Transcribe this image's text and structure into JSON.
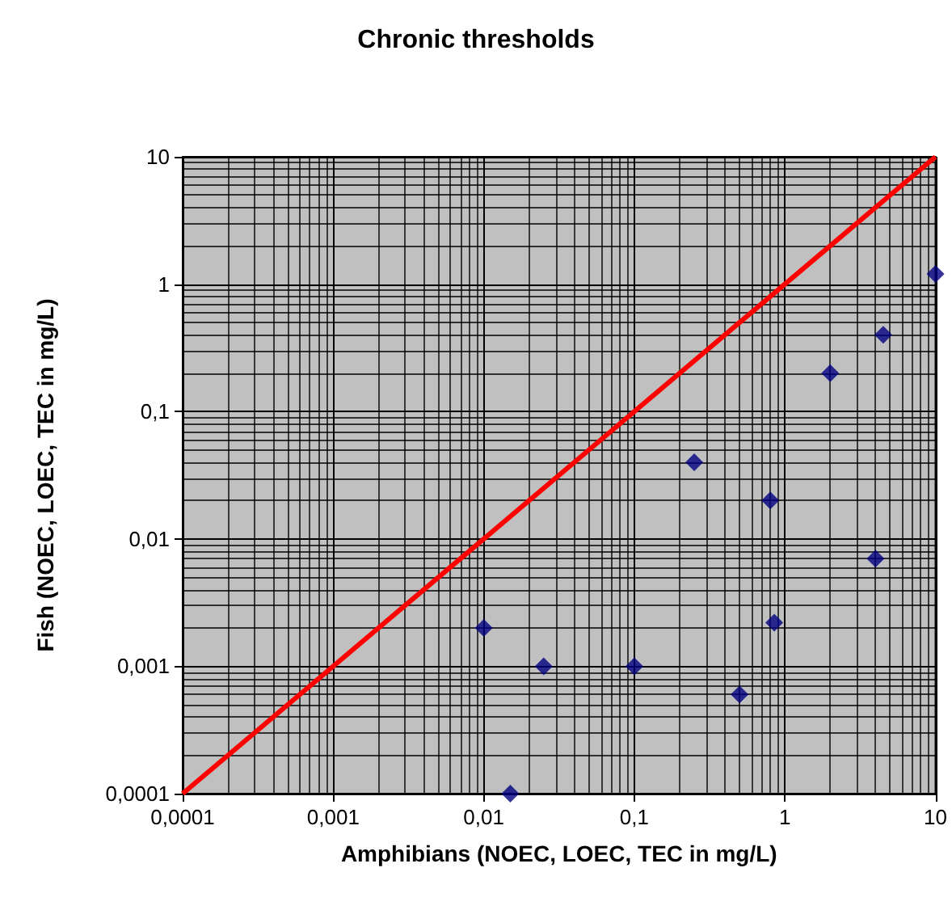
{
  "chart_data": {
    "type": "scatter",
    "title": "Chronic thresholds",
    "xlabel": "Amphibians (NOEC, LOEC, TEC in mg/L)",
    "ylabel": "Fish (NOEC, LOEC, TEC in mg/L)",
    "log": "xy",
    "grid": true,
    "xlim": [
      0.0001,
      10
    ],
    "ylim": [
      0.0001,
      10
    ],
    "xticks": [
      {
        "value": 0.0001,
        "label": "0,0001"
      },
      {
        "value": 0.001,
        "label": "0,001"
      },
      {
        "value": 0.01,
        "label": "0,01"
      },
      {
        "value": 0.1,
        "label": "0,1"
      },
      {
        "value": 1,
        "label": "1"
      },
      {
        "value": 10,
        "label": "10"
      }
    ],
    "yticks": [
      {
        "value": 0.0001,
        "label": "0,0001"
      },
      {
        "value": 0.001,
        "label": "0,001"
      },
      {
        "value": 0.01,
        "label": "0,01"
      },
      {
        "value": 0.1,
        "label": "0,1"
      },
      {
        "value": 1,
        "label": "1"
      },
      {
        "value": 10,
        "label": "10"
      }
    ],
    "series": [
      {
        "marker": "diamond",
        "color": "#000080",
        "x": [
          0.01,
          0.015,
          0.025,
          0.1,
          0.25,
          0.5,
          0.8,
          0.85,
          2,
          4,
          4.5,
          10
        ],
        "values": [
          0.002,
          0.0001,
          0.001,
          0.001,
          0.04,
          0.0006,
          0.02,
          0.0022,
          0.2,
          0.007,
          0.4,
          1.2
        ]
      },
      {
        "type": "line",
        "marker": "none",
        "color": "#ff0000",
        "x": [
          0.0001,
          10
        ],
        "values": [
          0.0001,
          10
        ]
      }
    ]
  }
}
